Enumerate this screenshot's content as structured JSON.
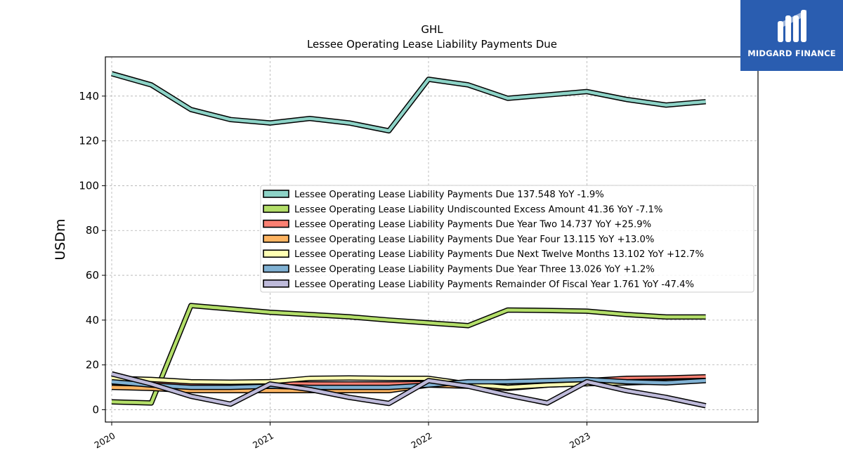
{
  "brand": {
    "name": "MIDGARD FINANCE",
    "bg": "#2a5db0"
  },
  "chart_data": {
    "type": "line",
    "title": "GHL",
    "subtitle": "Lessee Operating Lease Liability Payments Due",
    "xlabel": "",
    "ylabel": "USDm",
    "x_ticks": [
      "2020",
      "2021",
      "2022",
      "2023"
    ],
    "y_ticks": [
      0,
      20,
      40,
      60,
      80,
      100,
      120,
      140
    ],
    "xlim": [
      2019.96,
      2024.08
    ],
    "ylim": [
      -5.5,
      157.5
    ],
    "grid": true,
    "legend_position": "center-right",
    "x": [
      2020.0,
      2020.25,
      2020.5,
      2020.75,
      2021.0,
      2021.25,
      2021.5,
      2021.75,
      2022.0,
      2022.25,
      2022.5,
      2022.75,
      2023.0,
      2023.25,
      2023.5,
      2023.75
    ],
    "series": [
      {
        "name": "Lessee Operating Lease Liability Payments Due",
        "legend": "Lessee Operating Lease Liability Payments Due  137.548 YoY -1.9%",
        "color": "#8dd3c7",
        "values": [
          150.0,
          145.0,
          134.0,
          129.5,
          128.0,
          130.0,
          128.0,
          124.5,
          147.5,
          145.0,
          139.0,
          140.5,
          142.0,
          138.5,
          136.0,
          137.5
        ]
      },
      {
        "name": "Lessee Operating Lease Liability Undiscounted Excess Amount",
        "legend": "Lessee Operating Lease Liability Undiscounted Excess Amount  41.36 YoY -7.1%",
        "color": "#b3de69",
        "values": [
          3.5,
          3.0,
          46.5,
          45.0,
          43.5,
          42.5,
          41.5,
          40.0,
          38.8,
          37.5,
          44.5,
          44.3,
          44.0,
          42.5,
          41.4,
          41.4
        ]
      },
      {
        "name": "Lessee Operating Lease Liability Payments Due Year Two",
        "legend": "Lessee Operating Lease Liability Payments Due Year Two  14.737 YoY +25.9%",
        "color": "#fb8072",
        "values": [
          12.0,
          12.0,
          11.0,
          11.0,
          11.5,
          11.5,
          11.5,
          11.5,
          11.7,
          12.0,
          12.5,
          12.8,
          13.0,
          14.0,
          14.2,
          14.7
        ]
      },
      {
        "name": "Lessee Operating Lease Liability Payments Due Year Four",
        "legend": "Lessee Operating Lease Liability Payments Due Year Four  13.115 YoY +13.0%",
        "color": "#fdb462",
        "values": [
          10.0,
          9.5,
          8.5,
          8.5,
          8.5,
          8.5,
          8.5,
          8.5,
          11.0,
          10.5,
          9.5,
          11.0,
          11.6,
          12.5,
          12.8,
          13.1
        ]
      },
      {
        "name": "Lessee Operating Lease Liability Payments Due Next Twelve Months",
        "legend": "Lessee Operating Lease Liability Payments Due Next Twelve Months  13.102 YoY +12.7%",
        "color": "#ffffb3",
        "values": [
          14.0,
          13.5,
          12.5,
          12.3,
          12.5,
          14.0,
          14.2,
          14.0,
          14.0,
          11.5,
          10.0,
          11.0,
          11.6,
          12.0,
          12.5,
          13.1
        ]
      },
      {
        "name": "Lessee Operating Lease Liability Payments Due Year Three",
        "legend": "Lessee Operating Lease Liability Payments Due Year Three  13.026 YoY +1.2%",
        "color": "#80b1d3",
        "values": [
          12.5,
          11.0,
          10.0,
          10.0,
          10.5,
          10.0,
          10.0,
          10.0,
          11.0,
          12.5,
          12.5,
          13.0,
          13.5,
          12.5,
          12.0,
          13.0
        ]
      },
      {
        "name": "Lessee Operating Lease Liability Payments Remainder Of Fiscal Year",
        "legend": "Lessee Operating Lease Liability Payments Remainder Of Fiscal Year  1.761 YoY -47.4%",
        "color": "#bebada",
        "values": [
          16.0,
          11.5,
          6.0,
          2.5,
          11.5,
          9.0,
          5.5,
          2.8,
          13.0,
          10.5,
          6.5,
          3.0,
          12.5,
          8.5,
          5.5,
          1.76
        ]
      }
    ]
  }
}
